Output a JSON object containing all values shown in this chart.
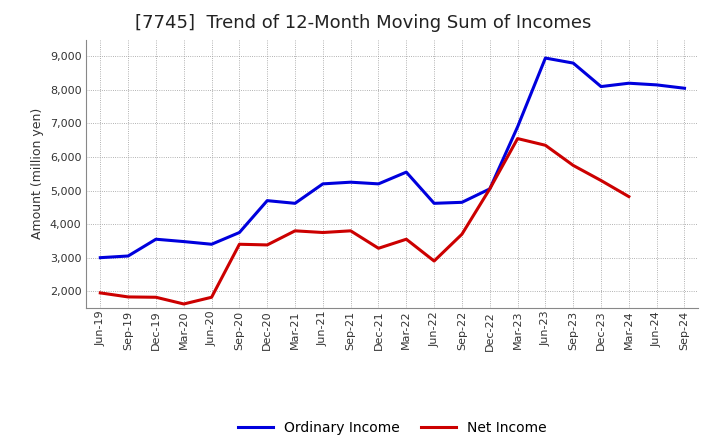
{
  "title": "[7745]  Trend of 12-Month Moving Sum of Incomes",
  "ylabel": "Amount (million yen)",
  "x_labels": [
    "Jun-19",
    "Sep-19",
    "Dec-19",
    "Mar-20",
    "Jun-20",
    "Sep-20",
    "Dec-20",
    "Mar-21",
    "Jun-21",
    "Sep-21",
    "Dec-21",
    "Mar-22",
    "Jun-22",
    "Sep-22",
    "Dec-22",
    "Mar-23",
    "Jun-23",
    "Sep-23",
    "Dec-23",
    "Mar-24",
    "Jun-24",
    "Sep-24"
  ],
  "ordinary_income": [
    3000,
    3050,
    3550,
    3480,
    3400,
    3750,
    4700,
    4620,
    5200,
    5250,
    5200,
    5550,
    4620,
    4650,
    5050,
    6900,
    8950,
    8800,
    8100,
    8200,
    8150,
    8050
  ],
  "net_income": [
    1950,
    1830,
    1820,
    1620,
    1820,
    3400,
    3380,
    3800,
    3750,
    3800,
    3280,
    3550,
    2900,
    3700,
    5050,
    6550,
    6350,
    5750,
    5300,
    4820,
    null,
    null
  ],
  "ordinary_color": "#0000dd",
  "net_color": "#cc0000",
  "background_color": "#ffffff",
  "grid_color": "#999999",
  "ylim_min": 1500,
  "ylim_max": 9500,
  "yticks": [
    2000,
    3000,
    4000,
    5000,
    6000,
    7000,
    8000,
    9000
  ],
  "title_fontsize": 13,
  "tick_fontsize": 8,
  "ylabel_fontsize": 9,
  "legend_fontsize": 10,
  "legend_labels": [
    "Ordinary Income",
    "Net Income"
  ],
  "line_width": 2.2
}
